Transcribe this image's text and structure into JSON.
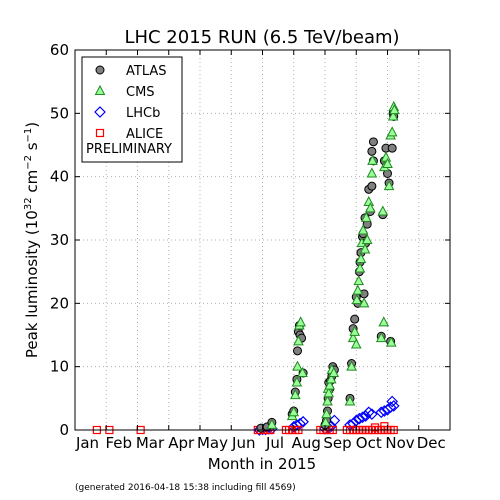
{
  "chart_data": {
    "type": "scatter",
    "title": "LHC 2015 RUN (6.5 TeV/beam)",
    "xlabel": "Month in 2015",
    "ylabel": "Peak luminosity (10",
    "ylabel_exp1": "32",
    "ylabel_mid": " cm",
    "ylabel_exp2": "−2",
    "ylabel_mid2": " s",
    "ylabel_exp3": "−1",
    "ylabel_end": ")",
    "ylim": [
      0,
      60
    ],
    "yticks": [
      0,
      10,
      20,
      30,
      40,
      50,
      60
    ],
    "xlim": [
      0,
      12
    ],
    "xticks": [
      "Jan",
      "Feb",
      "Mar",
      "Apr",
      "May",
      "Jun",
      "Jul",
      "Aug",
      "Sep",
      "Oct",
      "Nov",
      "Dec"
    ],
    "grid": true,
    "legend_position": "top-left",
    "legend_note": "PRELIMINARY",
    "footnote": "(generated 2016-04-18 15:38 including fill 4569)",
    "series": [
      {
        "name": "ATLAS",
        "marker": "circle",
        "color": "#808080",
        "points": [
          [
            5.95,
            0.3
          ],
          [
            6.15,
            0.5
          ],
          [
            6.3,
            1.2
          ],
          [
            6.95,
            2.5
          ],
          [
            7.0,
            3.0
          ],
          [
            7.05,
            6.0
          ],
          [
            7.1,
            8.0
          ],
          [
            7.12,
            12.5
          ],
          [
            7.15,
            15.5
          ],
          [
            7.18,
            16.5
          ],
          [
            7.2,
            15.0
          ],
          [
            7.25,
            14.5
          ],
          [
            7.3,
            9.0
          ],
          [
            8.0,
            0.8
          ],
          [
            8.05,
            1.5
          ],
          [
            8.08,
            3.0
          ],
          [
            8.1,
            5.0
          ],
          [
            8.12,
            7.5
          ],
          [
            8.15,
            6.5
          ],
          [
            8.18,
            7.8
          ],
          [
            8.22,
            8.5
          ],
          [
            8.25,
            10.0
          ],
          [
            8.3,
            9.5
          ],
          [
            8.8,
            5.0
          ],
          [
            8.85,
            10.5
          ],
          [
            8.9,
            16.0
          ],
          [
            8.95,
            17.5
          ],
          [
            9.0,
            21.0
          ],
          [
            9.05,
            20.0
          ],
          [
            9.1,
            25.0
          ],
          [
            9.12,
            26.5
          ],
          [
            9.15,
            28.0
          ],
          [
            9.2,
            30.5
          ],
          [
            9.22,
            31.0
          ],
          [
            9.25,
            21.5
          ],
          [
            9.28,
            33.5
          ],
          [
            9.3,
            29.5
          ],
          [
            9.35,
            32.5
          ],
          [
            9.4,
            38.0
          ],
          [
            9.45,
            34.5
          ],
          [
            9.5,
            44.0
          ],
          [
            9.55,
            45.5
          ],
          [
            9.5,
            38.5
          ],
          [
            9.55,
            42.5
          ],
          [
            9.8,
            14.8
          ],
          [
            9.85,
            34.0
          ],
          [
            9.9,
            42.5
          ],
          [
            9.95,
            44.5
          ],
          [
            10.0,
            40.5
          ],
          [
            10.05,
            39.0
          ],
          [
            10.1,
            14.0
          ],
          [
            10.15,
            44.5
          ],
          [
            10.18,
            50.0
          ],
          [
            10.2,
            49.5
          ]
        ]
      },
      {
        "name": "CMS",
        "marker": "triangle",
        "color": "#33cc33",
        "points": [
          [
            6.3,
            0.8
          ],
          [
            6.95,
            2.2
          ],
          [
            7.0,
            2.8
          ],
          [
            7.05,
            5.5
          ],
          [
            7.1,
            7.5
          ],
          [
            7.12,
            10.0
          ],
          [
            7.15,
            14.0
          ],
          [
            7.18,
            16.5
          ],
          [
            7.22,
            17.0
          ],
          [
            7.28,
            9.0
          ],
          [
            8.02,
            1.2
          ],
          [
            8.05,
            2.5
          ],
          [
            8.08,
            4.5
          ],
          [
            8.1,
            6.5
          ],
          [
            8.12,
            5.8
          ],
          [
            8.15,
            7.0
          ],
          [
            8.2,
            8.0
          ],
          [
            8.22,
            9.5
          ],
          [
            8.28,
            9.0
          ],
          [
            8.8,
            4.5
          ],
          [
            8.85,
            10.0
          ],
          [
            8.9,
            14.5
          ],
          [
            8.95,
            15.5
          ],
          [
            9.0,
            13.5
          ],
          [
            9.02,
            20.5
          ],
          [
            9.05,
            22.0
          ],
          [
            9.08,
            23.5
          ],
          [
            9.12,
            25.5
          ],
          [
            9.15,
            27.0
          ],
          [
            9.18,
            29.5
          ],
          [
            9.22,
            31.5
          ],
          [
            9.25,
            20.0
          ],
          [
            9.28,
            28.5
          ],
          [
            9.32,
            33.5
          ],
          [
            9.35,
            30.0
          ],
          [
            9.4,
            36.0
          ],
          [
            9.45,
            35.0
          ],
          [
            9.5,
            40.5
          ],
          [
            9.52,
            42.5
          ],
          [
            9.8,
            14.5
          ],
          [
            9.85,
            34.5
          ],
          [
            9.88,
            17.0
          ],
          [
            9.9,
            41.5
          ],
          [
            9.95,
            43.0
          ],
          [
            10.0,
            42.0
          ],
          [
            10.05,
            38.5
          ],
          [
            10.1,
            46.5
          ],
          [
            10.12,
            13.8
          ],
          [
            10.15,
            47.0
          ],
          [
            10.18,
            49.5
          ],
          [
            10.2,
            51.0
          ],
          [
            10.22,
            50.5
          ]
        ]
      },
      {
        "name": "LHCb",
        "marker": "diamond",
        "color": "#0000ff",
        "points": [
          [
            5.9,
            0.0
          ],
          [
            6.0,
            0.1
          ],
          [
            6.1,
            0.1
          ],
          [
            6.2,
            0.2
          ],
          [
            6.3,
            0.2
          ],
          [
            7.0,
            0.5
          ],
          [
            7.1,
            0.8
          ],
          [
            7.2,
            1.0
          ],
          [
            7.3,
            1.3
          ],
          [
            8.0,
            0.2
          ],
          [
            8.1,
            0.4
          ],
          [
            8.2,
            0.6
          ],
          [
            8.3,
            1.5
          ],
          [
            8.8,
            0.8
          ],
          [
            8.9,
            1.0
          ],
          [
            9.0,
            1.5
          ],
          [
            9.1,
            1.8
          ],
          [
            9.2,
            2.0
          ],
          [
            9.3,
            2.2
          ],
          [
            9.4,
            2.8
          ],
          [
            9.5,
            2.5
          ],
          [
            9.8,
            2.8
          ],
          [
            9.9,
            3.0
          ],
          [
            10.0,
            3.2
          ],
          [
            10.1,
            3.6
          ],
          [
            10.15,
            4.5
          ],
          [
            10.2,
            3.8
          ]
        ]
      },
      {
        "name": "ALICE",
        "marker": "square",
        "color": "#ff0000",
        "points": [
          [
            0.7,
            0.0
          ],
          [
            1.1,
            0.0
          ],
          [
            2.1,
            0.0
          ],
          [
            5.85,
            0.0
          ],
          [
            5.95,
            0.0
          ],
          [
            6.05,
            0.0
          ],
          [
            6.15,
            0.0
          ],
          [
            6.25,
            0.0
          ],
          [
            6.75,
            0.0
          ],
          [
            6.85,
            0.0
          ],
          [
            6.95,
            0.0
          ],
          [
            7.05,
            0.0
          ],
          [
            7.15,
            0.0
          ],
          [
            7.85,
            0.0
          ],
          [
            7.95,
            0.0
          ],
          [
            8.05,
            0.0
          ],
          [
            8.15,
            0.0
          ],
          [
            8.25,
            0.0
          ],
          [
            8.7,
            0.0
          ],
          [
            8.8,
            0.0
          ],
          [
            8.9,
            0.0
          ],
          [
            9.0,
            0.0
          ],
          [
            9.1,
            0.0
          ],
          [
            9.2,
            0.0
          ],
          [
            9.3,
            0.0
          ],
          [
            9.4,
            0.0
          ],
          [
            9.5,
            0.0
          ],
          [
            9.6,
            0.0
          ],
          [
            9.7,
            0.0
          ],
          [
            9.8,
            0.0
          ],
          [
            9.9,
            0.0
          ],
          [
            10.0,
            0.0
          ],
          [
            10.1,
            0.0
          ],
          [
            10.2,
            0.0
          ],
          [
            9.6,
            0.4
          ],
          [
            9.9,
            0.6
          ]
        ]
      }
    ]
  }
}
